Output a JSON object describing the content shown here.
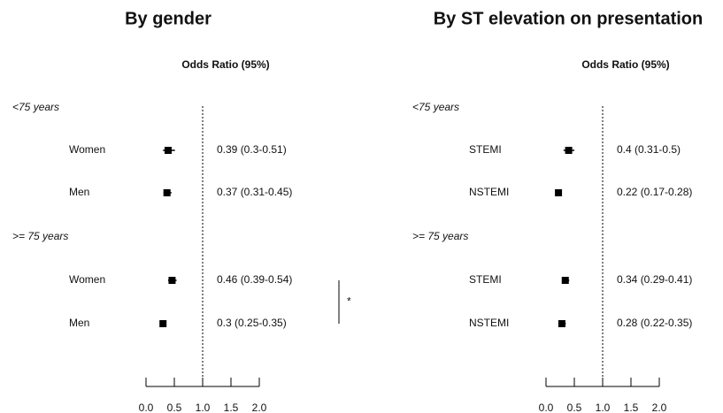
{
  "chart_data": [
    {
      "type": "forest",
      "title": "By gender",
      "header": "Odds Ratio (95%)",
      "xlim": [
        0,
        2
      ],
      "xticks": [
        {
          "value": 0,
          "label": "0.0"
        },
        0.5,
        {
          "value": 1,
          "label": "1.0"
        },
        1.5,
        {
          "value": 2,
          "label": "2.0"
        }
      ],
      "reference": 1,
      "color": "#000000",
      "annotation": "*",
      "groups": [
        {
          "name": "<75 years",
          "categories": [
            "Women",
            "Men"
          ],
          "values": [
            0.39,
            0.37
          ],
          "lower": [
            0.3,
            0.31
          ],
          "upper": [
            0.51,
            0.45
          ],
          "value_labels": [
            "0.39 (0.3-0.51)",
            "0.37 (0.31-0.45)"
          ]
        },
        {
          "name": ">= 75 years",
          "categories": [
            "Women",
            "Men"
          ],
          "values": [
            0.46,
            0.3
          ],
          "lower": [
            0.39,
            0.25
          ],
          "upper": [
            0.54,
            0.35
          ],
          "value_labels": [
            "0.46 (0.39-0.54)",
            "0.3 (0.25-0.35)"
          ]
        }
      ]
    },
    {
      "type": "forest",
      "title": "By ST elevation on presentation",
      "header": "Odds Ratio (95%)",
      "xlim": [
        0,
        2
      ],
      "xticks": [
        {
          "value": 0,
          "label": "0.0"
        },
        0.5,
        {
          "value": 1,
          "label": "1.0"
        },
        1.5,
        {
          "value": 2,
          "label": "2.0"
        }
      ],
      "reference": 1,
      "color": "#000000",
      "groups": [
        {
          "name": "<75 years",
          "categories": [
            "STEMI",
            "NSTEMI"
          ],
          "values": [
            0.4,
            0.22
          ],
          "lower": [
            0.31,
            0.17
          ],
          "upper": [
            0.5,
            0.28
          ],
          "value_labels": [
            "0.4 (0.31-0.5)",
            "0.22 (0.17-0.28)"
          ]
        },
        {
          "name": ">= 75 years",
          "categories": [
            "STEMI",
            "NSTEMI"
          ],
          "values": [
            0.34,
            0.28
          ],
          "lower": [
            0.29,
            0.22
          ],
          "upper": [
            0.41,
            0.35
          ],
          "value_labels": [
            "0.34 (0.29-0.41)",
            "0.28 (0.22-0.35)"
          ]
        }
      ]
    }
  ]
}
